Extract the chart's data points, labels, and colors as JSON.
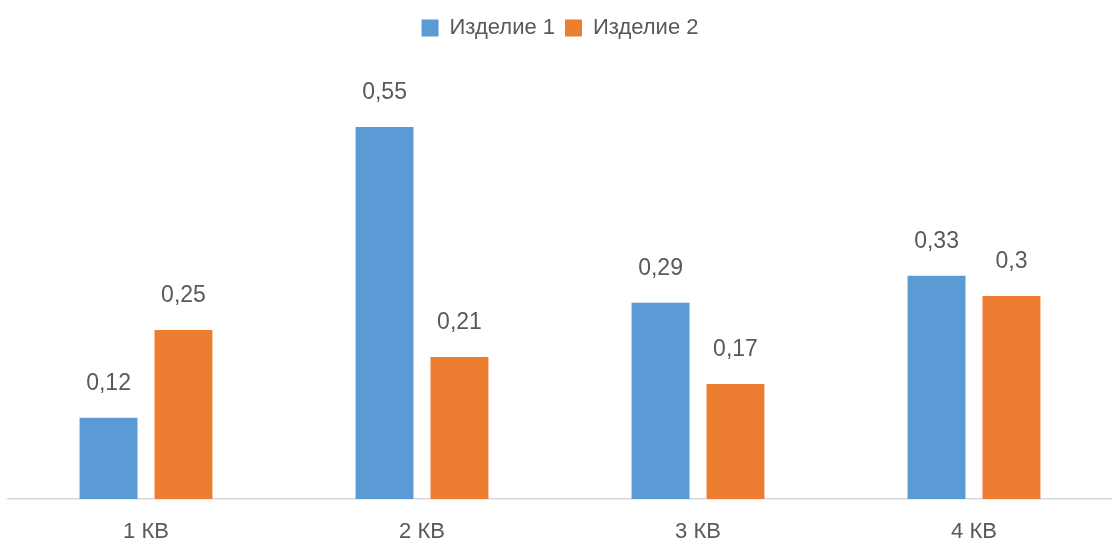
{
  "chart_data": {
    "type": "bar",
    "categories": [
      "1 КВ",
      "2 КВ",
      "3 КВ",
      "4 КВ"
    ],
    "series": [
      {
        "name": "Изделие 1",
        "color": "#5b9bd5",
        "values": [
          0.12,
          0.55,
          0.29,
          0.33
        ],
        "value_labels": [
          "0,12",
          "0,55",
          "0,29",
          "0,33"
        ]
      },
      {
        "name": "Изделие 2",
        "color": "#ed7d31",
        "values": [
          0.25,
          0.21,
          0.17,
          0.3
        ],
        "value_labels": [
          "0,25",
          "0,21",
          "0,17",
          "0,3"
        ]
      }
    ],
    "legend": "top",
    "tick_labels": "x"
  }
}
